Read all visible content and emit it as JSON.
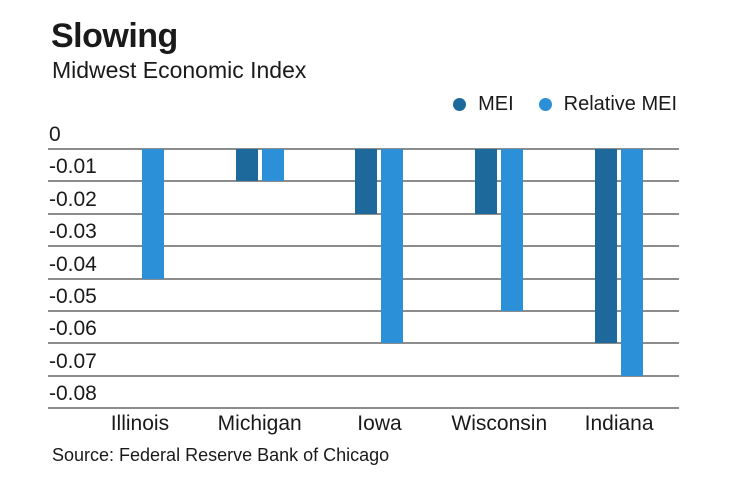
{
  "page": {
    "title": "Slowing",
    "subtitle": "Midwest Economic Index",
    "source": "Source: Federal Reserve Bank of Chicago"
  },
  "legend": {
    "position": "top-right",
    "items": [
      {
        "label": "MEI",
        "color": "#1e699c"
      },
      {
        "label": "Relative MEI",
        "color": "#2b90d7"
      }
    ]
  },
  "chart_data": {
    "type": "bar",
    "title": "Slowing",
    "subtitle": "Midwest Economic Index",
    "categories": [
      "Illinois",
      "Michigan",
      "Iowa",
      "Wisconsin",
      "Indiana"
    ],
    "series": [
      {
        "name": "MEI",
        "color": "#1e699c",
        "values": [
          0,
          -0.01,
          -0.02,
          -0.02,
          -0.06
        ]
      },
      {
        "name": "Relative MEI",
        "color": "#2b90d7",
        "values": [
          -0.04,
          -0.01,
          -0.06,
          -0.05,
          -0.07
        ]
      }
    ],
    "xlabel": "",
    "ylabel": "",
    "ylim": [
      -0.08,
      0
    ],
    "yticks": [
      0,
      -0.01,
      -0.02,
      -0.03,
      -0.04,
      -0.05,
      -0.06,
      -0.07,
      -0.08
    ],
    "ytick_labels": [
      "0",
      "-0.01",
      "-0.02",
      "-0.03",
      "-0.04",
      "-0.05",
      "-0.06",
      "-0.07",
      "-0.08"
    ],
    "grid": true,
    "legend_position": "top-right",
    "source": "Source: Federal Reserve Bank of Chicago"
  },
  "colors": {
    "text": "#1a1a1a",
    "gridline": "#8c8c8c",
    "background": "#ffffff"
  }
}
